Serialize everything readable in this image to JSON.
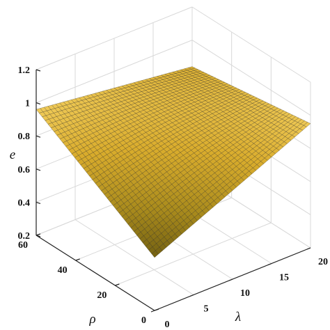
{
  "chart_data": {
    "type": "surface",
    "title": "",
    "xlabel": "λ",
    "ylabel": "ρ",
    "zlabel": "e",
    "xlim": [
      0,
      20
    ],
    "ylim": [
      0,
      60
    ],
    "zlim": [
      0.2,
      1.2
    ],
    "xticks": [
      "0",
      "5",
      "10",
      "15",
      "20"
    ],
    "yticks": [
      "0",
      "20",
      "40",
      "60"
    ],
    "zticks": [
      "0.2",
      "0.4",
      "0.6",
      "0.8",
      "1",
      "1.2"
    ],
    "grid": true,
    "corners": [
      {
        "x": 0,
        "y": 0,
        "z": 0.52
      },
      {
        "x": 20,
        "y": 0,
        "z": 0.95
      },
      {
        "x": 0,
        "y": 60,
        "z": 0.96
      },
      {
        "x": 20,
        "y": 60,
        "z": 0.84
      }
    ],
    "colormap": [
      "#6b5a10",
      "#a88a1c",
      "#d9ac2c",
      "#f4d060"
    ]
  }
}
